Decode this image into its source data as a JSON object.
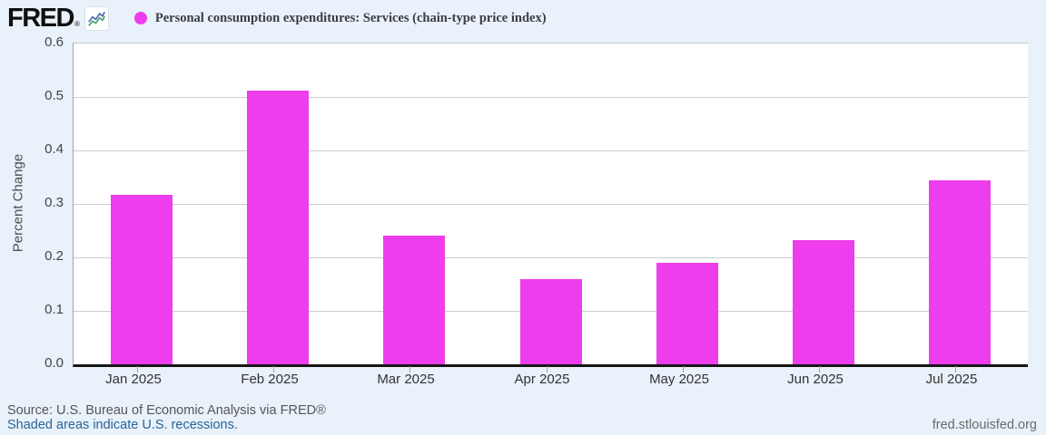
{
  "header": {
    "logo_text": "FRED",
    "logo_registered": "®",
    "legend": {
      "marker_icon": "magenta-dot-icon",
      "label": "Personal consumption expenditures: Services (chain-type price index)"
    }
  },
  "chart_data": {
    "type": "bar",
    "title": "Personal consumption expenditures: Services (chain-type price index)",
    "categories": [
      "Jan 2025",
      "Feb 2025",
      "Mar 2025",
      "Apr 2025",
      "May 2025",
      "Jun 2025",
      "Jul 2025"
    ],
    "values": [
      0.317,
      0.512,
      0.24,
      0.159,
      0.189,
      0.233,
      0.344
    ],
    "xlabel": "",
    "ylabel": "Percent Change",
    "ylim": [
      0,
      0.6
    ],
    "ytick_labels": [
      "0.0",
      "0.1",
      "0.2",
      "0.3",
      "0.4",
      "0.5",
      "0.6"
    ],
    "grid": true,
    "legend_position": "top-left",
    "bar_color": "#ee3dec",
    "plot_background": "#ffffff",
    "page_background": "#e9f1fa"
  },
  "footer": {
    "source": "Source: U.S. Bureau of Economic Analysis via FRED®",
    "recessions_note": "Shaded areas indicate U.S. recessions.",
    "site_link": "fred.stlouisfed.org"
  }
}
